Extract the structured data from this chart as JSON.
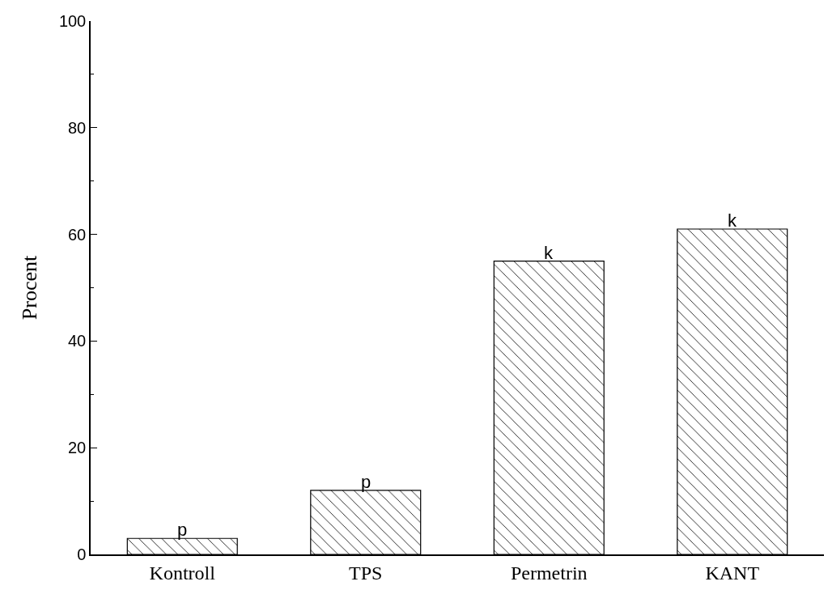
{
  "chart_data": {
    "type": "bar",
    "ylabel": "Procent",
    "categories": [
      "Kontroll",
      "TPS",
      "Permetrin",
      "KANT"
    ],
    "values": [
      3,
      12,
      55,
      61
    ],
    "color": "#000000",
    "ylim": [
      0,
      100
    ],
    "yticks": [
      0,
      20,
      40,
      60,
      80,
      100
    ],
    "grid": false,
    "annotations": [
      {
        "text": "p",
        "x": "Kontroll",
        "y": 3
      },
      {
        "text": "p",
        "x": "TPS",
        "y": 12
      },
      {
        "text": "k",
        "x": "Permetrin",
        "y": 55
      },
      {
        "text": "k",
        "x": "KANT",
        "y": 61
      }
    ]
  }
}
